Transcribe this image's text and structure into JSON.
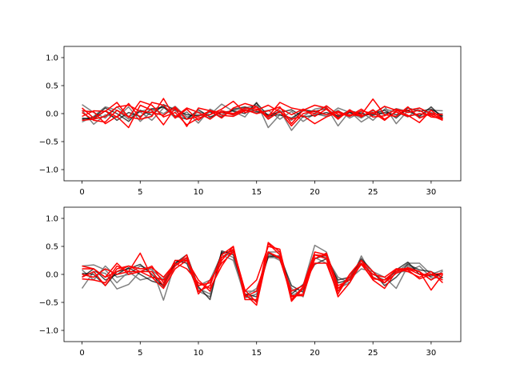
{
  "colors": {
    "background": "#ffffff",
    "gray": "#808080",
    "black": "#000000",
    "red": "#ff0000"
  },
  "chart_data": [
    {
      "type": "line",
      "title": "",
      "xlabel": "",
      "ylabel": "",
      "xlim": [
        -1.55,
        32.55
      ],
      "ylim": [
        -1.2,
        1.2
      ],
      "xticks": [
        0,
        5,
        10,
        15,
        20,
        25,
        30
      ],
      "xtick_labels": [
        "0",
        "5",
        "10",
        "15",
        "20",
        "25",
        "30"
      ],
      "yticks": [
        -1.0,
        -0.5,
        0.0,
        0.5,
        1.0
      ],
      "ytick_labels": [
        "−1.0",
        "−0.5",
        "0.0",
        "0.5",
        "1.0"
      ],
      "grid": false,
      "x": [
        0,
        1,
        2,
        3,
        4,
        5,
        6,
        7,
        8,
        9,
        10,
        11,
        12,
        13,
        14,
        15,
        16,
        17,
        18,
        19,
        20,
        21,
        22,
        23,
        24,
        25,
        26,
        27,
        28,
        29,
        30,
        31
      ],
      "series": [
        {
          "color": "gray",
          "values": [
            0.16,
            0.02,
            -0.08,
            0.12,
            -0.05,
            0.03,
            -0.12,
            0.1,
            0.05,
            -0.1,
            0.03,
            -0.02,
            0.17,
            0.04,
            -0.06,
            0.2,
            -0.25,
            -0.02,
            -0.12,
            0.08,
            0.03,
            -0.05,
            0.1,
            0.02,
            -0.08,
            0.05,
            -0.02,
            0.09,
            0.04,
            -0.03,
            0.06,
            0.05
          ]
        },
        {
          "color": "gray",
          "values": [
            0.06,
            -0.19,
            -0.02,
            -0.07,
            0.12,
            -0.14,
            0.04,
            0.12,
            -0.08,
            0.03,
            -0.17,
            0.08,
            -0.02,
            0.06,
            0.1,
            0.15,
            -0.08,
            0.06,
            -0.3,
            -0.05,
            0.08,
            0.12,
            -0.22,
            0.04,
            -0.15,
            -0.02,
            0.13,
            -0.18,
            0.05,
            -0.07,
            0.02,
            -0.05
          ]
        },
        {
          "color": "gray",
          "values": [
            -0.15,
            -0.05,
            0.12,
            0.06,
            -0.1,
            0.04,
            0.09,
            0.0,
            0.13,
            -0.06,
            -0.02,
            -0.08,
            0.05,
            -0.03,
            0.08,
            0.02,
            0.06,
            -0.1,
            0.04,
            -0.14,
            0.0,
            -0.05,
            0.06,
            -0.08,
            0.03,
            -0.12,
            0.08,
            0.03,
            -0.06,
            0.1,
            -0.02,
            0.0
          ]
        },
        {
          "color": "black",
          "values": [
            -0.08,
            -0.1,
            0.05,
            -0.12,
            0.02,
            -0.05,
            0.08,
            0.12,
            -0.04,
            -0.1,
            0.07,
            -0.06,
            0.02,
            0.05,
            0.0,
            0.19,
            -0.04,
            -0.02,
            -0.08,
            0.05,
            0.04,
            0.09,
            -0.06,
            0.02,
            -0.04,
            0.0,
            0.06,
            -0.08,
            0.1,
            0.04,
            0.08,
            -0.04
          ]
        },
        {
          "color": "black",
          "values": [
            -0.1,
            -0.07,
            0.1,
            0.0,
            -0.14,
            0.06,
            -0.03,
            0.16,
            0.07,
            -0.02,
            -0.04,
            0.03,
            -0.06,
            0.08,
            0.12,
            0.04,
            -0.02,
            0.02,
            0.07,
            -0.06,
            -0.03,
            0.02,
            -0.04,
            0.05,
            0.0,
            -0.03,
            0.02,
            -0.02,
            0.06,
            -0.05,
            0.12,
            -0.08
          ]
        },
        {
          "color": "red",
          "values": [
            0.1,
            -0.08,
            0.05,
            -0.06,
            0.18,
            -0.08,
            0.2,
            0.15,
            -0.06,
            0.1,
            0.02,
            -0.1,
            0.05,
            0.0,
            0.1,
            0.08,
            -0.05,
            0.2,
            0.1,
            0.06,
            0.15,
            0.1,
            -0.08,
            0.04,
            -0.02,
            0.26,
            -0.02,
            -0.05,
            0.12,
            -0.08,
            0.0,
            -0.1
          ]
        },
        {
          "color": "red",
          "values": [
            -0.05,
            0.05,
            0.04,
            0.2,
            -0.07,
            0.22,
            0.15,
            -0.06,
            0.02,
            -0.2,
            -0.08,
            -0.02,
            0.08,
            0.22,
            0.02,
            0.06,
            0.15,
            0.03,
            -0.1,
            -0.04,
            -0.18,
            -0.06,
            0.02,
            -0.05,
            0.05,
            0.0,
            0.13,
            0.06,
            -0.03,
            -0.16,
            0.06,
            -0.1
          ]
        },
        {
          "color": "red",
          "values": [
            0.02,
            -0.12,
            -0.15,
            0.06,
            -0.06,
            -0.1,
            -0.05,
            0.27,
            -0.08,
            0.08,
            -0.12,
            0.06,
            -0.03,
            -0.05,
            0.05,
            0.12,
            -0.06,
            0.1,
            -0.02,
            0.08,
            -0.05,
            0.08,
            -0.1,
            0.07,
            -0.06,
            0.07,
            -0.1,
            0.03,
            -0.05,
            0.0,
            -0.03,
            -0.12
          ]
        },
        {
          "color": "red",
          "values": [
            -0.12,
            -0.1,
            -0.05,
            0.12,
            0.15,
            0.04,
            0.02,
            -0.03,
            0.12,
            -0.1,
            -0.05,
            0.05,
            -0.08,
            0.1,
            0.18,
            0.12,
            -0.1,
            0.04,
            -0.22,
            0.0,
            0.05,
            -0.02,
            0.04,
            -0.04,
            0.08,
            -0.06,
            -0.04,
            0.08,
            0.02,
            0.06,
            -0.06,
            -0.08
          ]
        },
        {
          "color": "red",
          "values": [
            0.05,
            0.03,
            -0.18,
            -0.05,
            -0.25,
            0.15,
            0.06,
            -0.2,
            0.1,
            -0.23,
            0.1,
            0.05,
            0.02,
            -0.02,
            0.07,
            0.0,
            0.05,
            0.12,
            -0.18,
            0.06,
            0.0,
            0.14,
            -0.02,
            -0.02,
            -0.04,
            0.02,
            -0.12,
            0.05,
            0.06,
            0.1,
            0.0,
            -0.02
          ]
        }
      ]
    },
    {
      "type": "line",
      "title": "",
      "xlabel": "",
      "ylabel": "",
      "xlim": [
        -1.55,
        32.55
      ],
      "ylim": [
        -1.2,
        1.2
      ],
      "xticks": [
        0,
        5,
        10,
        15,
        20,
        25,
        30
      ],
      "xtick_labels": [
        "0",
        "5",
        "10",
        "15",
        "20",
        "25",
        "30"
      ],
      "yticks": [
        -1.0,
        -0.5,
        0.0,
        0.5,
        1.0
      ],
      "ytick_labels": [
        "−1.0",
        "−0.5",
        "0.0",
        "0.5",
        "1.0"
      ],
      "grid": false,
      "x": [
        0,
        1,
        2,
        3,
        4,
        5,
        6,
        7,
        8,
        9,
        10,
        11,
        12,
        13,
        14,
        15,
        16,
        17,
        18,
        19,
        20,
        21,
        22,
        23,
        24,
        25,
        26,
        27,
        28,
        29,
        30,
        31
      ],
      "series": [
        {
          "color": "gray",
          "values": [
            -0.25,
            0.05,
            0.02,
            -0.26,
            -0.18,
            0.05,
            0.12,
            -0.46,
            0.2,
            0.3,
            -0.3,
            -0.4,
            0.4,
            0.3,
            -0.42,
            -0.35,
            0.4,
            0.4,
            -0.3,
            -0.2,
            0.52,
            0.4,
            -0.25,
            -0.15,
            0.33,
            -0.05,
            -0.15,
            0.02,
            0.2,
            0.2,
            0.0,
            0.08
          ]
        },
        {
          "color": "gray",
          "values": [
            0.15,
            0.17,
            0.08,
            -0.15,
            0.05,
            -0.1,
            -0.05,
            -0.08,
            0.2,
            0.25,
            -0.2,
            -0.1,
            0.35,
            0.25,
            -0.38,
            -0.25,
            0.3,
            0.3,
            -0.38,
            -0.28,
            0.3,
            0.2,
            -0.3,
            -0.08,
            0.1,
            0.05,
            -0.05,
            -0.25,
            0.15,
            0.05,
            -0.1,
            0.06
          ]
        },
        {
          "color": "gray",
          "values": [
            0.08,
            -0.1,
            0.15,
            -0.05,
            0.0,
            0.15,
            0.08,
            -0.1,
            0.18,
            0.28,
            -0.25,
            -0.35,
            0.3,
            0.4,
            -0.3,
            -0.3,
            0.35,
            0.25,
            -0.25,
            -0.4,
            0.35,
            0.3,
            -0.05,
            -0.15,
            0.2,
            0.0,
            -0.1,
            0.05,
            0.05,
            0.15,
            -0.06,
            -0.06
          ]
        },
        {
          "color": "black",
          "values": [
            0.02,
            0.0,
            -0.2,
            0.05,
            0.1,
            0.18,
            0.0,
            -0.22,
            0.2,
            0.35,
            -0.22,
            -0.45,
            0.42,
            0.35,
            -0.35,
            -0.4,
            0.32,
            0.33,
            -0.2,
            -0.32,
            0.28,
            0.35,
            -0.15,
            -0.1,
            0.25,
            -0.05,
            -0.15,
            0.08,
            0.22,
            0.0,
            -0.03,
            0.02
          ]
        },
        {
          "color": "black",
          "values": [
            -0.05,
            0.1,
            -0.1,
            0.0,
            0.12,
            0.0,
            -0.12,
            -0.18,
            0.25,
            0.2,
            -0.3,
            -0.2,
            0.38,
            0.42,
            -0.38,
            -0.48,
            0.38,
            0.28,
            -0.35,
            -0.18,
            0.18,
            0.28,
            -0.1,
            -0.05,
            0.28,
            0.05,
            -0.2,
            -0.05,
            0.18,
            0.08,
            0.05,
            -0.06
          ]
        },
        {
          "color": "red",
          "values": [
            0.15,
            0.1,
            -0.05,
            0.2,
            0.0,
            0.05,
            0.15,
            -0.15,
            0.25,
            0.25,
            -0.1,
            -0.3,
            0.25,
            0.5,
            -0.45,
            -0.45,
            0.57,
            0.4,
            -0.48,
            -0.25,
            0.35,
            0.33,
            -0.25,
            -0.05,
            0.2,
            0.0,
            -0.05,
            0.1,
            0.05,
            -0.05,
            0.05,
            -0.15
          ]
        },
        {
          "color": "red",
          "values": [
            0.0,
            -0.05,
            0.1,
            0.0,
            0.05,
            0.05,
            0.05,
            -0.2,
            0.15,
            0.3,
            -0.35,
            -0.1,
            0.2,
            0.4,
            -0.35,
            -0.55,
            0.4,
            0.28,
            -0.4,
            -0.35,
            0.35,
            0.28,
            -0.4,
            -0.15,
            0.2,
            -0.1,
            -0.25,
            0.05,
            0.12,
            0.05,
            -0.1,
            0.02
          ]
        },
        {
          "color": "red",
          "values": [
            -0.08,
            -0.1,
            -0.15,
            0.15,
            0.05,
            0.38,
            -0.05,
            -0.25,
            0.1,
            0.25,
            -0.2,
            -0.15,
            0.3,
            0.45,
            -0.3,
            -0.1,
            0.5,
            0.45,
            -0.45,
            -0.22,
            0.2,
            0.2,
            -0.35,
            0.0,
            0.25,
            0.05,
            -0.15,
            0.02,
            0.1,
            0.0,
            0.0,
            -0.1
          ]
        },
        {
          "color": "red",
          "values": [
            0.1,
            0.1,
            -0.05,
            0.05,
            0.15,
            0.1,
            0.12,
            -0.05,
            0.2,
            0.1,
            -0.15,
            -0.25,
            0.15,
            0.45,
            -0.28,
            -0.5,
            0.55,
            0.35,
            -0.38,
            -0.38,
            0.28,
            0.38,
            -0.2,
            -0.1,
            0.18,
            -0.08,
            -0.1,
            0.08,
            0.08,
            -0.08,
            0.0,
            0.02
          ]
        },
        {
          "color": "red",
          "values": [
            -0.05,
            0.05,
            -0.2,
            0.1,
            0.15,
            0.05,
            -0.05,
            -0.1,
            0.15,
            0.35,
            -0.3,
            -0.2,
            0.35,
            0.5,
            -0.4,
            -0.3,
            0.4,
            0.3,
            -0.3,
            -0.2,
            0.4,
            0.35,
            -0.3,
            0.0,
            0.25,
            -0.05,
            -0.15,
            0.1,
            0.1,
            0.05,
            -0.28,
            0.0
          ]
        }
      ]
    }
  ]
}
